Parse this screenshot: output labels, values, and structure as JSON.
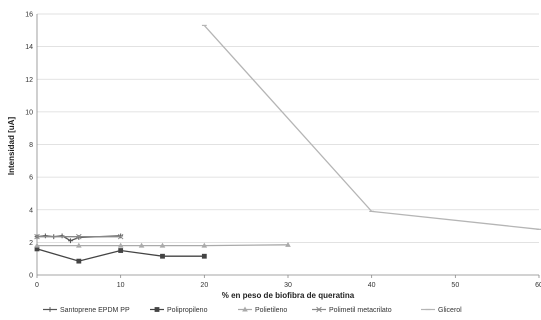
{
  "chart_data": {
    "type": "line",
    "title": "",
    "xlabel": "% en peso de biofibra de queratina",
    "ylabel": "Intensidad [uA]",
    "xlim": [
      0,
      60
    ],
    "ylim": [
      0,
      16
    ],
    "x_ticks": [
      0,
      10,
      20,
      30,
      40,
      50,
      60
    ],
    "y_ticks": [
      0,
      2,
      4,
      6,
      8,
      10,
      12,
      14,
      16
    ],
    "grid": "horizontal",
    "legend_position": "bottom",
    "series": [
      {
        "name": "Santoprene EPDM PP",
        "color": "#555555",
        "marker": "plus",
        "points": [
          [
            0,
            2.35
          ],
          [
            1,
            2.4
          ],
          [
            2,
            2.35
          ],
          [
            3,
            2.4
          ],
          [
            4,
            2.1
          ],
          [
            5,
            2.3
          ],
          [
            10,
            2.4
          ]
        ]
      },
      {
        "name": "Polipropileno",
        "color": "#444444",
        "marker": "square",
        "points": [
          [
            0,
            1.6
          ],
          [
            5,
            0.85
          ],
          [
            10,
            1.5
          ],
          [
            15,
            1.15
          ],
          [
            20,
            1.15
          ]
        ]
      },
      {
        "name": "Polietileno",
        "color": "#aaaaaa",
        "marker": "triangle",
        "points": [
          [
            0,
            1.8
          ],
          [
            5,
            1.8
          ],
          [
            10,
            1.8
          ],
          [
            12.5,
            1.8
          ],
          [
            15,
            1.8
          ],
          [
            20,
            1.8
          ],
          [
            30,
            1.85
          ]
        ]
      },
      {
        "name": "Polimetil metacrilato",
        "color": "#888888",
        "marker": "cross",
        "points": [
          [
            0,
            2.35
          ],
          [
            5,
            2.35
          ],
          [
            10,
            2.35
          ]
        ]
      },
      {
        "name": "Glicerol",
        "color": "#b5b5b5",
        "marker": "dash",
        "points": [
          [
            20,
            15.3
          ],
          [
            40,
            3.9
          ],
          [
            60,
            2.8
          ]
        ]
      }
    ]
  }
}
